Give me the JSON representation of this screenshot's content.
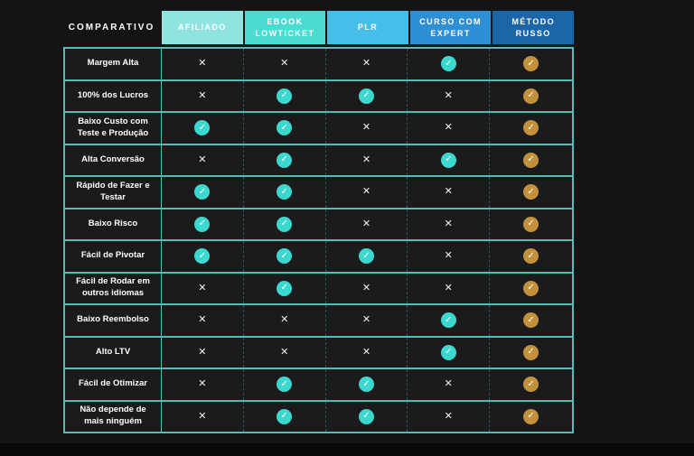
{
  "page": {
    "background": "#141414"
  },
  "table": {
    "corner_label": "COMPARATIVO",
    "columns": [
      {
        "label": "AFILIADO",
        "color": "#8FE4DF"
      },
      {
        "label": "EBOOK\nLOWTICKET",
        "color": "#4BDBD2"
      },
      {
        "label": "PLR",
        "color": "#45BFEA"
      },
      {
        "label": "CURSO COM\nEXPERT",
        "color": "#2F8FD4"
      },
      {
        "label": "MÉTODO\nRUSSO",
        "color": "#1D65A9"
      }
    ],
    "check_glyph": "✓",
    "cross_glyph": "✕",
    "check_teal": "#3BD8CF",
    "check_gold": "#C3913C",
    "cross_color": "#F2F2F2",
    "border_color": "#54BDB6",
    "rows": [
      {
        "label": "Margem Alta",
        "values": [
          "x",
          "x",
          "x",
          "v",
          "g"
        ]
      },
      {
        "label": "100% dos Lucros",
        "values": [
          "x",
          "v",
          "v",
          "x",
          "g"
        ]
      },
      {
        "label": "Baixo Custo com Teste e Produção",
        "values": [
          "v",
          "v",
          "x",
          "x",
          "g"
        ]
      },
      {
        "label": "Alta Conversão",
        "values": [
          "x",
          "v",
          "x",
          "v",
          "g"
        ]
      },
      {
        "label": "Rápido de Fazer e Testar",
        "values": [
          "v",
          "v",
          "x",
          "x",
          "g"
        ]
      },
      {
        "label": "Baixo Risco",
        "values": [
          "v",
          "v",
          "x",
          "x",
          "g"
        ]
      },
      {
        "label": "Fácil de Pivotar",
        "values": [
          "v",
          "v",
          "v",
          "x",
          "g"
        ]
      },
      {
        "label": "Fácil de Rodar em outros idiomas",
        "values": [
          "x",
          "v",
          "x",
          "x",
          "g"
        ]
      },
      {
        "label": "Baixo Reembolso",
        "values": [
          "x",
          "x",
          "x",
          "v",
          "g"
        ]
      },
      {
        "label": "Alto LTV",
        "values": [
          "x",
          "x",
          "x",
          "v",
          "g"
        ]
      },
      {
        "label": "Fácil de Otimizar",
        "values": [
          "x",
          "v",
          "v",
          "x",
          "g"
        ]
      },
      {
        "label": "Não depende de mais ninguém",
        "values": [
          "x",
          "v",
          "v",
          "x",
          "g"
        ]
      }
    ]
  },
  "chart_data": {
    "type": "table",
    "title": "COMPARATIVO",
    "categories": [
      "AFILIADO",
      "EBOOK LOWTICKET",
      "PLR",
      "CURSO COM EXPERT",
      "MÉTODO RUSSO"
    ],
    "row_labels": [
      "Margem Alta",
      "100% dos Lucros",
      "Baixo Custo com Teste e Produção",
      "Alta Conversão",
      "Rápido de Fazer e Testar",
      "Baixo Risco",
      "Fácil de Pivotar",
      "Fácil de Rodar em outros idiomas",
      "Baixo Reembolso",
      "Alto LTV",
      "Fácil de Otimizar",
      "Não depende de mais ninguém"
    ],
    "values": [
      [
        false,
        false,
        false,
        true,
        true
      ],
      [
        false,
        true,
        true,
        false,
        true
      ],
      [
        true,
        true,
        false,
        false,
        true
      ],
      [
        false,
        true,
        false,
        true,
        true
      ],
      [
        true,
        true,
        false,
        false,
        true
      ],
      [
        true,
        true,
        false,
        false,
        true
      ],
      [
        true,
        true,
        true,
        false,
        true
      ],
      [
        false,
        true,
        false,
        false,
        true
      ],
      [
        false,
        false,
        false,
        true,
        true
      ],
      [
        false,
        false,
        false,
        true,
        true
      ],
      [
        false,
        true,
        true,
        false,
        true
      ],
      [
        false,
        true,
        true,
        false,
        true
      ]
    ],
    "notes": "true = check mark, false = cross; checks in first four columns are teal circles, checks in MÉTODO RUSSO column are gold circles"
  }
}
